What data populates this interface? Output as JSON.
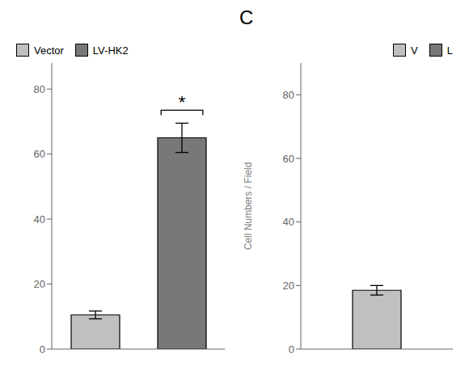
{
  "chart_data": [
    {
      "type": "bar",
      "categories": [
        null,
        null
      ],
      "series": [
        {
          "name": "Vector",
          "color": "#c0c0c0",
          "values": [
            10.5,
            null
          ],
          "errors": [
            1.2,
            null
          ]
        },
        {
          "name": "LV-HK2",
          "color": "#787878",
          "values": [
            null,
            65.0
          ],
          "errors": [
            null,
            4.5
          ],
          "annotation": "*"
        }
      ],
      "ylim": [
        0,
        88
      ],
      "yticks": [
        0,
        20,
        40,
        60,
        80
      ],
      "grid": false,
      "legend": "upper left"
    },
    {
      "type": "bar",
      "title": "C",
      "y_label": "Cell Numbers / Field",
      "categories": [
        null
      ],
      "series": [
        {
          "name": "V",
          "color": "#c0c0c0",
          "values": [
            18.5
          ],
          "errors": [
            1.5
          ]
        },
        {
          "name": "L",
          "color": "#787878",
          "values": [
            null
          ],
          "errors": [
            null
          ]
        }
      ],
      "ylim": [
        0,
        90
      ],
      "yticks": [
        0,
        20,
        40,
        60,
        80
      ],
      "grid": false,
      "legend": "upper right"
    }
  ]
}
